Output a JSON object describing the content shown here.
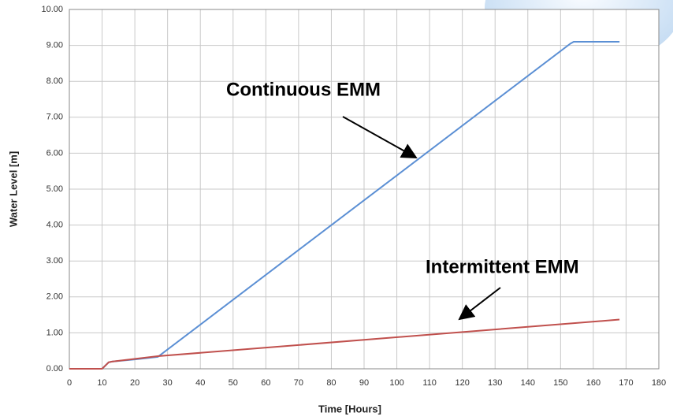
{
  "chart_data": {
    "type": "line",
    "xlabel": "Time [Hours]",
    "ylabel": "Water Level [m]",
    "xlim": [
      0,
      180
    ],
    "xticks": [
      0,
      10,
      20,
      30,
      40,
      50,
      60,
      70,
      80,
      90,
      100,
      110,
      120,
      130,
      140,
      150,
      160,
      170,
      180
    ],
    "ylim": [
      0,
      10
    ],
    "yticks": [
      {
        "value": 0,
        "label": "0.00"
      },
      {
        "value": 1,
        "label": "1.00"
      },
      {
        "value": 2,
        "label": "2.00"
      },
      {
        "value": 3,
        "label": "3.00"
      },
      {
        "value": 4,
        "label": "4.00"
      },
      {
        "value": 5,
        "label": "5.00"
      },
      {
        "value": 6,
        "label": "6.00"
      },
      {
        "value": 7,
        "label": "7.00"
      },
      {
        "value": 8,
        "label": "8.00"
      },
      {
        "value": 9,
        "label": "9.00"
      },
      {
        "value": 10,
        "label": "10.00"
      }
    ],
    "grid": true,
    "series": [
      {
        "name": "Continuous EMM",
        "color": "#5b8fd4",
        "x": [
          0,
          10,
          12,
          13,
          20,
          27,
          153,
          154,
          168
        ],
        "values": [
          0,
          0,
          0.18,
          0.2,
          0.26,
          0.33,
          9.05,
          9.1,
          9.1
        ]
      },
      {
        "name": "Intermittent EMM",
        "color": "#c0504d",
        "x": [
          0,
          10,
          12,
          13,
          27,
          168
        ],
        "values": [
          0,
          0,
          0.18,
          0.2,
          0.35,
          1.37
        ]
      }
    ]
  }
}
